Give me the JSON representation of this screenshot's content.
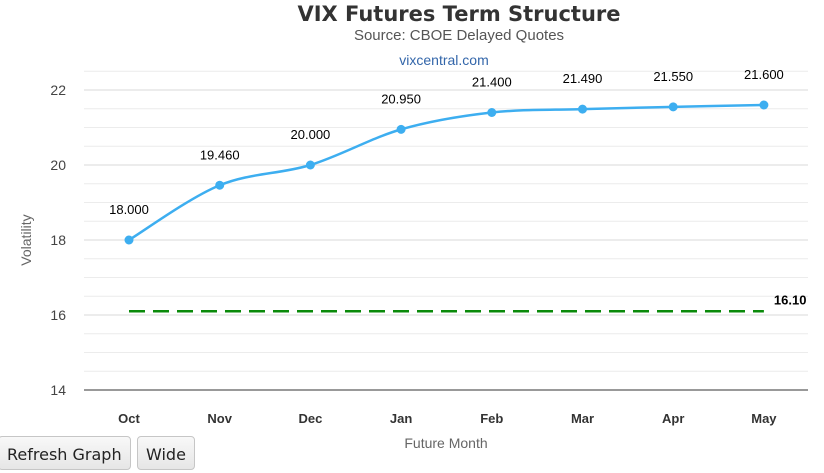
{
  "chart_data": {
    "type": "line",
    "title": "VIX Futures Term Structure",
    "subtitle": "Source: CBOE Delayed Quotes",
    "credit": "vixcentral.com",
    "xlabel": "Future Month",
    "ylabel": "Volatility",
    "categories": [
      "Oct",
      "Nov",
      "Dec",
      "Jan",
      "Feb",
      "Mar",
      "Apr",
      "May"
    ],
    "series": [
      {
        "values": [
          18.0,
          19.46,
          20.0,
          20.95,
          21.4,
          21.49,
          21.55,
          21.6
        ],
        "value_labels": [
          "18.000",
          "19.460",
          "20.000",
          "20.950",
          "21.400",
          "21.490",
          "21.550",
          "21.600"
        ],
        "color": "#3daef0",
        "style": "smooth-line-with-markers"
      }
    ],
    "spot_line": {
      "value": 16.1,
      "label": "16.10",
      "color": "#0a8a0a",
      "style": "dashed"
    },
    "ylim": [
      14,
      22.5
    ],
    "yticks": [
      14,
      16,
      18,
      20,
      22
    ],
    "ytick_labels": [
      "14",
      "16",
      "18",
      "20",
      "22"
    ],
    "grid": true,
    "legend": "none"
  },
  "buttons": {
    "refresh_label": "Refresh Graph",
    "wide_label": "Wide"
  }
}
